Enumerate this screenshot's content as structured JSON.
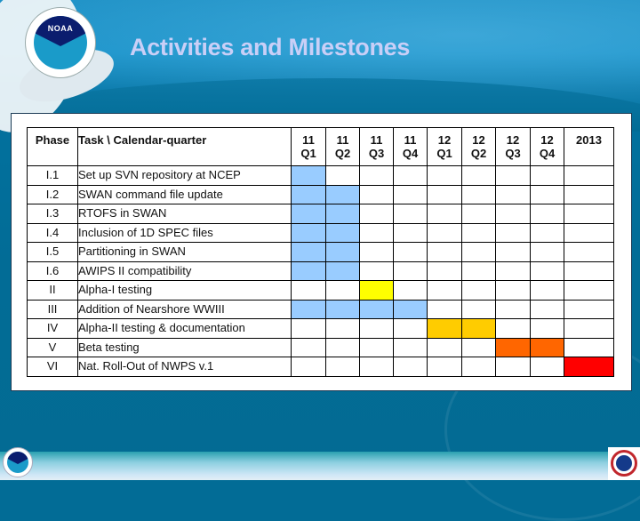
{
  "slide": {
    "title": "Activities and Milestones",
    "logos": {
      "top_left": "noaa-logo",
      "top_left_text": "NOAA",
      "bottom_left": "noaa-small-logo",
      "bottom_right": "nws-logo"
    }
  },
  "table": {
    "header": {
      "phase": "Phase",
      "task": "Task \\ Calendar-quarter",
      "quarters": [
        {
          "year": "11",
          "q": "Q1"
        },
        {
          "year": "11",
          "q": "Q2"
        },
        {
          "year": "11",
          "q": "Q3"
        },
        {
          "year": "11",
          "q": "Q4"
        },
        {
          "year": "12",
          "q": "Q1"
        },
        {
          "year": "12",
          "q": "Q2"
        },
        {
          "year": "12",
          "q": "Q3"
        },
        {
          "year": "12",
          "q": "Q4"
        },
        {
          "year": "2013",
          "q": ""
        }
      ]
    },
    "colors": {
      "blue": "#99ccff",
      "yellow": "#ffff00",
      "gold": "#ffcc00",
      "orange": "#ff6600",
      "red": "#ff0000"
    },
    "rows": [
      {
        "phase": "I.1",
        "task": "Set up SVN repository at NCEP",
        "cells": [
          "blue",
          "",
          "",
          "",
          "",
          "",
          "",
          "",
          ""
        ]
      },
      {
        "phase": "I.2",
        "task": "SWAN command file update",
        "cells": [
          "blue",
          "blue",
          "",
          "",
          "",
          "",
          "",
          "",
          ""
        ]
      },
      {
        "phase": "I.3",
        "task": "RTOFS in SWAN",
        "cells": [
          "blue",
          "blue",
          "",
          "",
          "",
          "",
          "",
          "",
          ""
        ]
      },
      {
        "phase": "I.4",
        "task": "Inclusion of 1D SPEC files",
        "cells": [
          "blue",
          "blue",
          "",
          "",
          "",
          "",
          "",
          "",
          ""
        ]
      },
      {
        "phase": "I.5",
        "task": "Partitioning in SWAN",
        "cells": [
          "blue",
          "blue",
          "",
          "",
          "",
          "",
          "",
          "",
          ""
        ]
      },
      {
        "phase": "I.6",
        "task": "AWIPS II compatibility",
        "cells": [
          "blue",
          "blue",
          "",
          "",
          "",
          "",
          "",
          "",
          ""
        ]
      },
      {
        "phase": "II",
        "task": "Alpha-I testing",
        "cells": [
          "",
          "",
          "yellow",
          "",
          "",
          "",
          "",
          "",
          ""
        ]
      },
      {
        "phase": "III",
        "task": "Addition of Nearshore WWIII",
        "cells": [
          "blue",
          "blue",
          "blue",
          "blue",
          "",
          "",
          "",
          "",
          ""
        ]
      },
      {
        "phase": "IV",
        "task": "Alpha-II testing & documentation",
        "cells": [
          "",
          "",
          "",
          "",
          "gold",
          "gold",
          "",
          "",
          ""
        ]
      },
      {
        "phase": "V",
        "task": "Beta testing",
        "cells": [
          "",
          "",
          "",
          "",
          "",
          "",
          "orange",
          "orange",
          ""
        ]
      },
      {
        "phase": "VI",
        "task": "Nat. Roll-Out of NWPS v.1",
        "cells": [
          "",
          "",
          "",
          "",
          "",
          "",
          "",
          "",
          "red"
        ]
      }
    ]
  }
}
